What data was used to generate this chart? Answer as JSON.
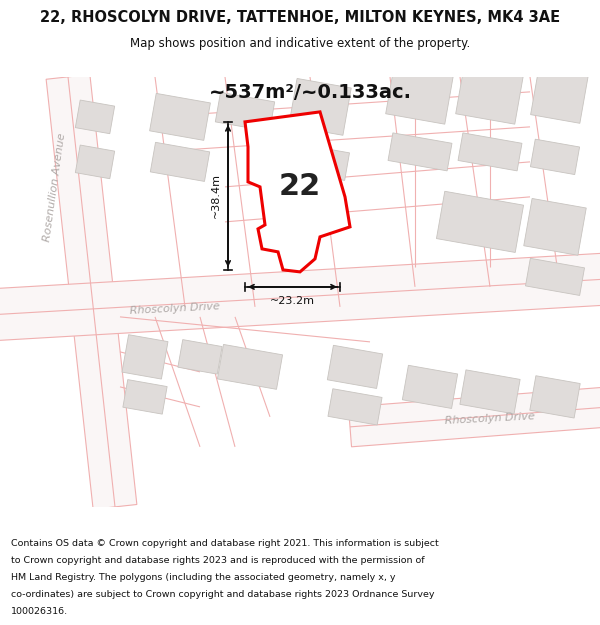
{
  "title": "22, RHOSCOLYN DRIVE, TATTENHOE, MILTON KEYNES, MK4 3AE",
  "subtitle": "Map shows position and indicative extent of the property.",
  "area_text": "~537m²/~0.133ac.",
  "label_22": "22",
  "dim_height": "~38.4m",
  "dim_width": "~23.2m",
  "footer_lines": [
    "Contains OS data © Crown copyright and database right 2021. This information is subject",
    "to Crown copyright and database rights 2023 and is reproduced with the permission of",
    "HM Land Registry. The polygons (including the associated geometry, namely x, y",
    "co-ordinates) are subject to Crown copyright and database rights 2023 Ordnance Survey",
    "100026316."
  ],
  "map_bg": "#ffffff",
  "road_line_color": "#f0b0b0",
  "road_line_lw": 0.8,
  "building_fill": "#e0dcda",
  "building_edge": "#c8c4c0",
  "property_fill": "#ffffff",
  "property_edge": "#ee0000",
  "property_lw": 2.2,
  "street_name_color": "#b0aaa8",
  "rosenullion_color": "#b0aaa8",
  "dim_line_color": "#111111",
  "area_fontsize": 14,
  "label_fontsize": 22,
  "dim_fontsize": 8,
  "street_fontsize": 8
}
